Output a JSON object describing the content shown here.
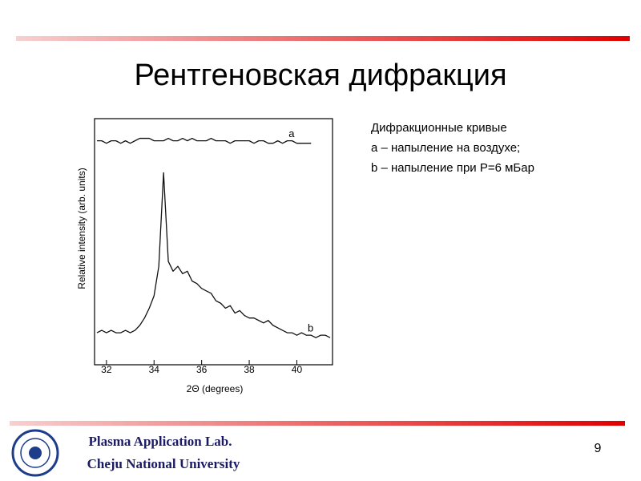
{
  "slide": {
    "title": "Рентгеновская дифракция",
    "caption": [
      "Дифракционные кривые",
      "a – напыление на воздухе;",
      "b – напыление при P=6 мБар"
    ],
    "footer": [
      "Plasma Application Lab.",
      "Cheju National University"
    ],
    "page_number": "9"
  },
  "chart_data": {
    "type": "line",
    "x_label": "2Θ (degrees)",
    "y_label": "Relative intensity (arb. units)",
    "x": [
      31.6,
      31.8,
      32,
      32.2,
      32.4,
      32.6,
      32.8,
      33,
      33.2,
      33.4,
      33.6,
      33.8,
      34,
      34.2,
      34.4,
      34.6,
      34.8,
      35,
      35.2,
      35.4,
      35.6,
      35.8,
      36,
      36.2,
      36.4,
      36.6,
      36.8,
      37,
      37.2,
      37.4,
      37.6,
      37.8,
      38,
      38.2,
      38.4,
      38.6,
      38.8,
      39,
      39.2,
      39.4,
      39.6,
      39.8,
      40,
      40.2,
      40.4,
      40.6,
      40.8,
      41,
      41.2,
      41.4
    ],
    "series": [
      {
        "name": "a",
        "color": "#111111",
        "values": [
          91,
          91,
          90,
          91,
          91,
          90,
          91,
          90,
          91,
          92,
          92,
          92,
          91,
          91,
          91,
          92,
          91,
          91,
          92,
          91,
          92,
          91,
          91,
          91,
          92,
          91,
          91,
          91,
          90,
          91,
          91,
          91,
          91,
          90,
          91,
          91,
          90,
          90,
          91,
          90,
          91,
          91,
          90,
          90,
          90,
          90,
          null,
          null,
          null,
          null
        ]
      },
      {
        "name": "b",
        "color": "#111111",
        "values": [
          13,
          14,
          13,
          14,
          13,
          13,
          14,
          13,
          14,
          16,
          19,
          23,
          28,
          40,
          78,
          42,
          38,
          40,
          37,
          38,
          34,
          33,
          31,
          30,
          29,
          26,
          25,
          23,
          24,
          21,
          22,
          20,
          19,
          19,
          18,
          17,
          18,
          16,
          15,
          14,
          13,
          13,
          12,
          13,
          12,
          12,
          11,
          12,
          12,
          11
        ]
      }
    ],
    "xlim": [
      31.5,
      41.5
    ],
    "xticks": [
      32,
      34,
      36,
      38,
      40
    ],
    "ylim": [
      0,
      100
    ]
  }
}
